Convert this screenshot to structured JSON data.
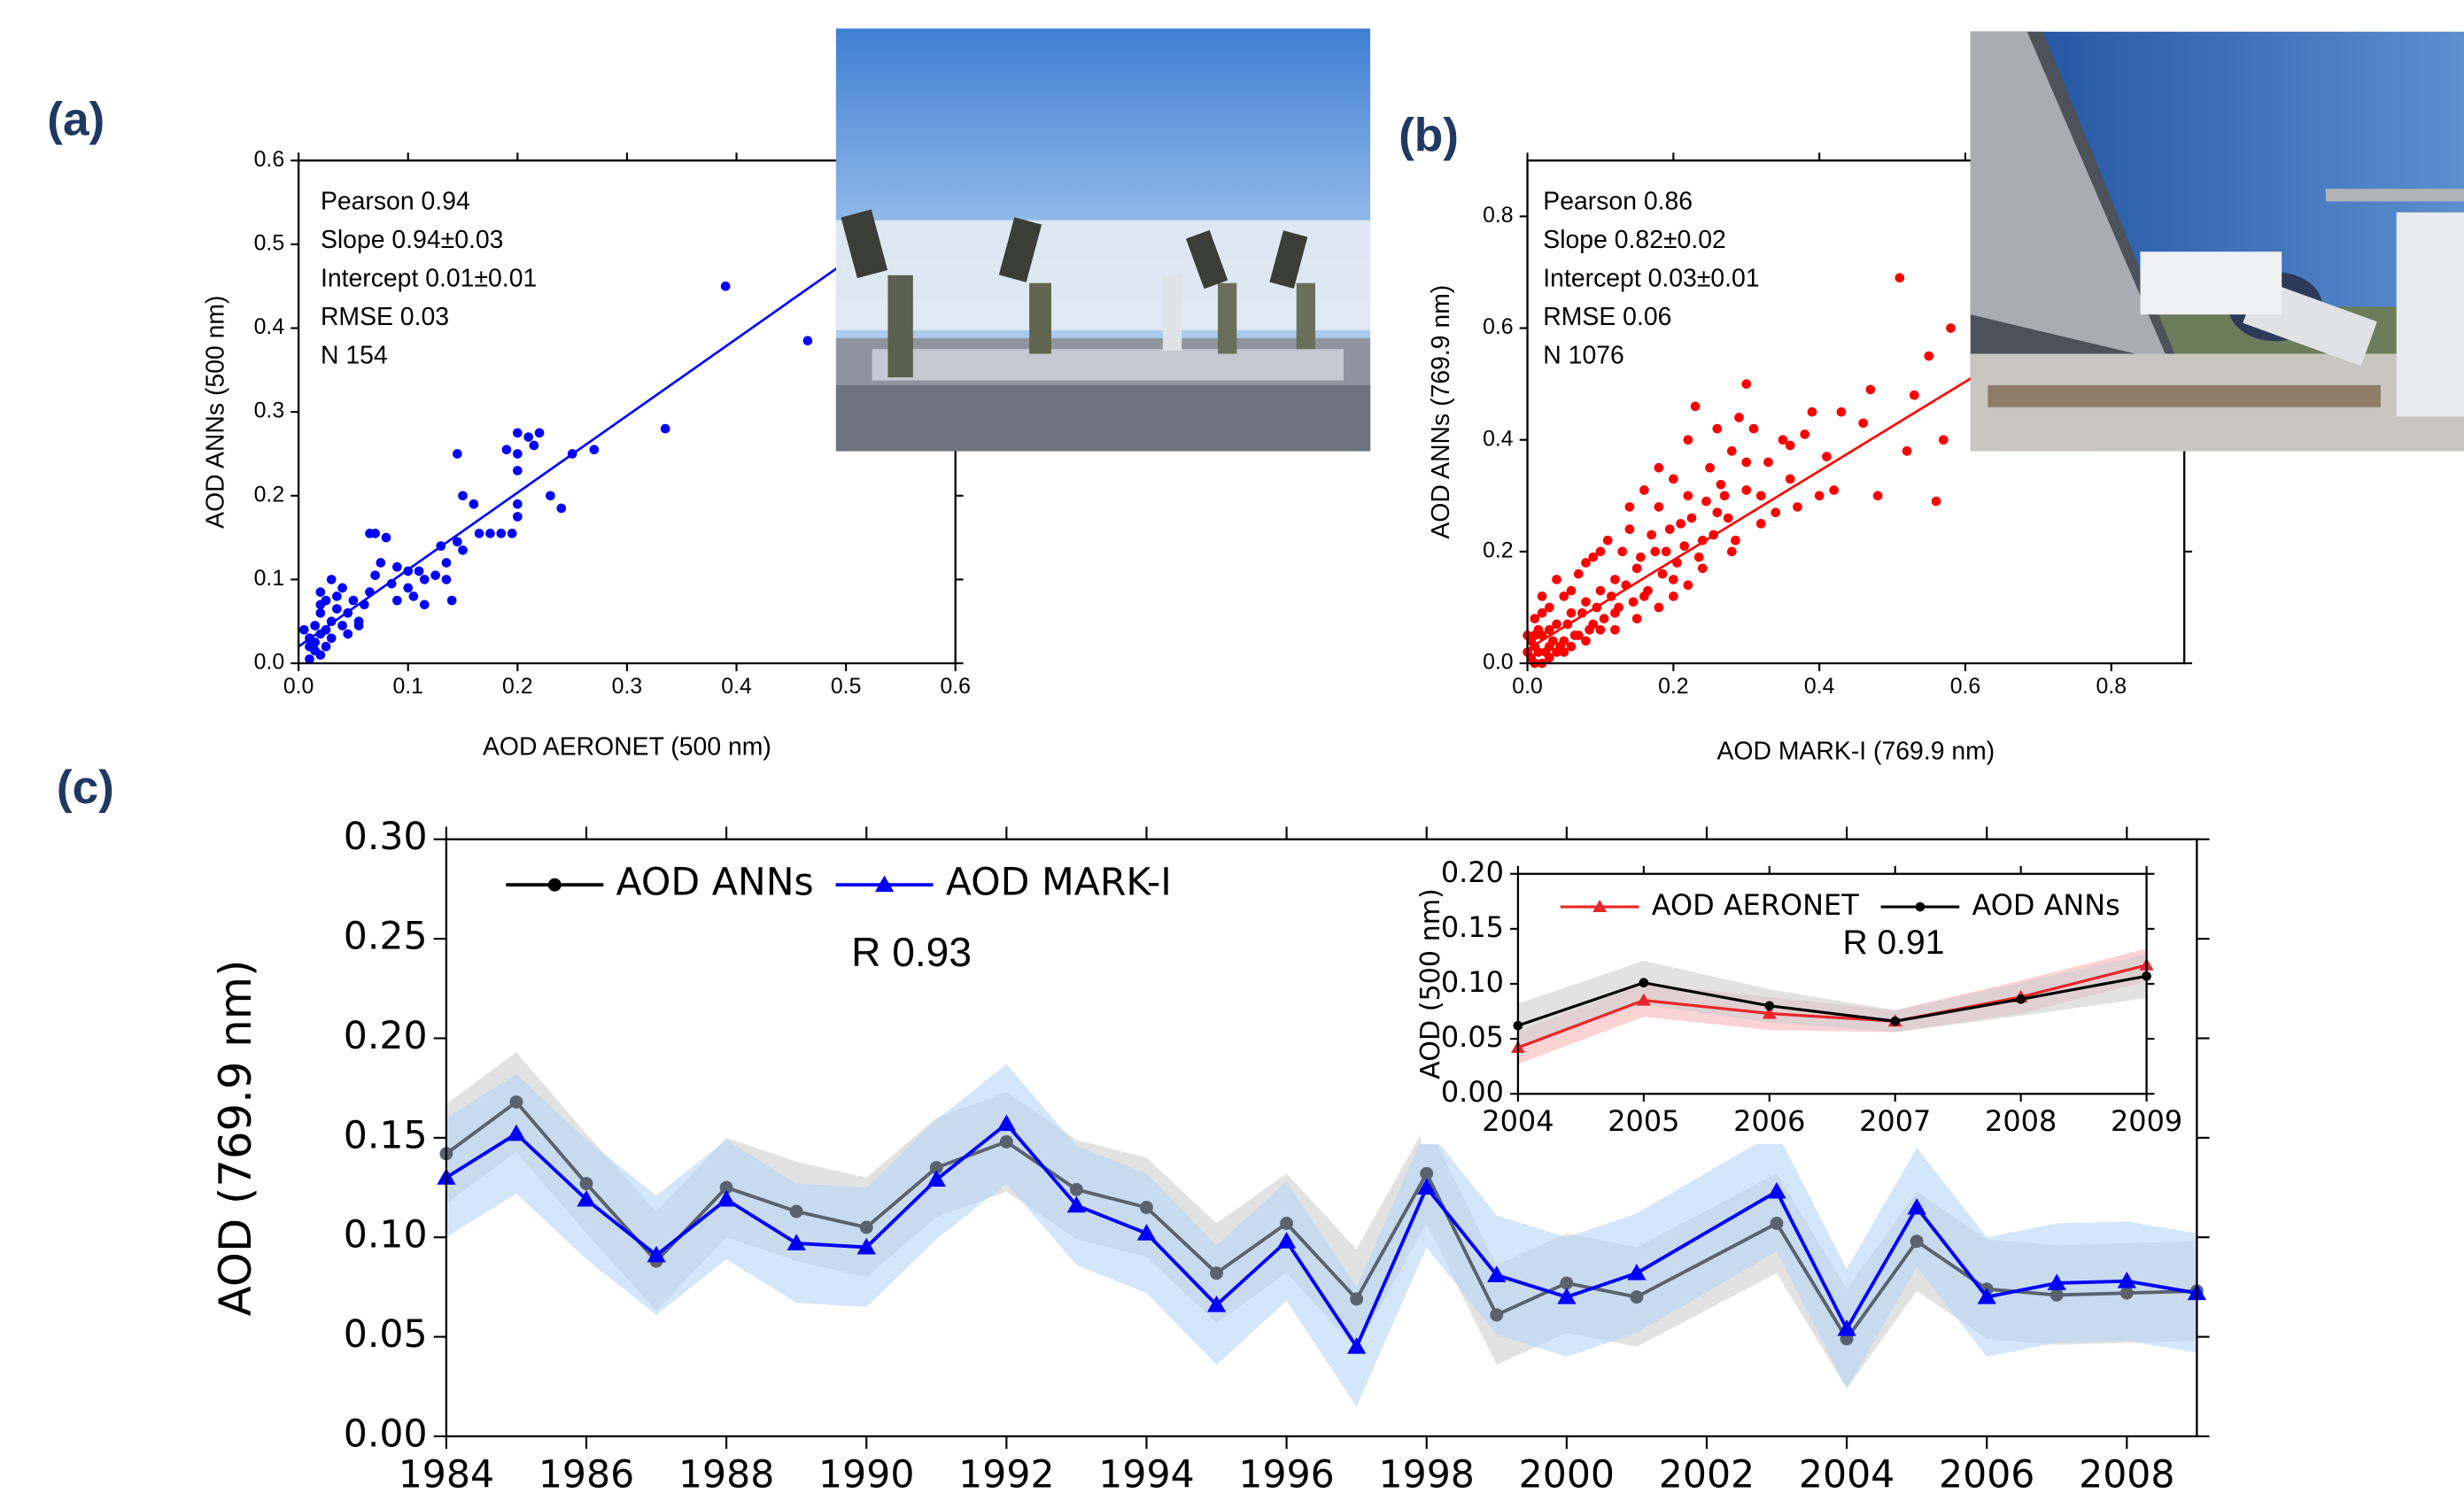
{
  "chart_data": [
    {
      "type": "scatter",
      "panel_label": "(a)",
      "xlabel": "AOD AERONET (500 nm)",
      "ylabel": "AOD ANNs (500 nm)",
      "xlim": [
        0,
        0.6
      ],
      "ylim": [
        0,
        0.6
      ],
      "xticks": [
        {
          "value": 0,
          "label": "0.0"
        },
        0.1,
        0.2,
        0.3,
        0.4,
        0.5,
        0.6
      ],
      "yticks": [
        {
          "value": 0,
          "label": "0.0"
        },
        0.1,
        0.2,
        0.3,
        0.4,
        0.5,
        0.6
      ],
      "annotations": [
        "Pearson 0.94",
        "Slope 0.94±0.03",
        "Intercept 0.01±0.01",
        "RMSE 0.03",
        "N 154"
      ],
      "color": "#0000ff",
      "fit_line": {
        "x": [
          0,
          0.55
        ],
        "y": [
          0.02,
          0.525
        ]
      },
      "points": [
        [
          0.39,
          0.45
        ],
        [
          0.465,
          0.385
        ],
        [
          0.335,
          0.28
        ],
        [
          0.27,
          0.255
        ],
        [
          0.25,
          0.25
        ],
        [
          0.23,
          0.2
        ],
        [
          0.24,
          0.185
        ],
        [
          0.22,
          0.275
        ],
        [
          0.21,
          0.27
        ],
        [
          0.2,
          0.275
        ],
        [
          0.215,
          0.26
        ],
        [
          0.2,
          0.25
        ],
        [
          0.19,
          0.255
        ],
        [
          0.2,
          0.23
        ],
        [
          0.2,
          0.19
        ],
        [
          0.2,
          0.175
        ],
        [
          0.195,
          0.155
        ],
        [
          0.175,
          0.155
        ],
        [
          0.185,
          0.155
        ],
        [
          0.165,
          0.155
        ],
        [
          0.16,
          0.19
        ],
        [
          0.145,
          0.25
        ],
        [
          0.15,
          0.2
        ],
        [
          0.145,
          0.145
        ],
        [
          0.15,
          0.135
        ],
        [
          0.135,
          0.12
        ],
        [
          0.13,
          0.14
        ],
        [
          0.125,
          0.105
        ],
        [
          0.115,
          0.1
        ],
        [
          0.115,
          0.07
        ],
        [
          0.135,
          0.1
        ],
        [
          0.14,
          0.075
        ],
        [
          0.11,
          0.11
        ],
        [
          0.1,
          0.11
        ],
        [
          0.1,
          0.09
        ],
        [
          0.09,
          0.115
        ],
        [
          0.085,
          0.095
        ],
        [
          0.08,
          0.15
        ],
        [
          0.07,
          0.155
        ],
        [
          0.065,
          0.155
        ],
        [
          0.07,
          0.105
        ],
        [
          0.075,
          0.12
        ],
        [
          0.06,
          0.07
        ],
        [
          0.055,
          0.05
        ],
        [
          0.05,
          0.075
        ],
        [
          0.045,
          0.06
        ],
        [
          0.04,
          0.09
        ],
        [
          0.035,
          0.065
        ],
        [
          0.03,
          0.1
        ],
        [
          0.025,
          0.075
        ],
        [
          0.02,
          0.06
        ],
        [
          0.03,
          0.05
        ],
        [
          0.025,
          0.04
        ],
        [
          0.02,
          0.035
        ],
        [
          0.015,
          0.045
        ],
        [
          0.01,
          0.03
        ],
        [
          0.01,
          0.02
        ],
        [
          0.015,
          0.015
        ],
        [
          0.005,
          0.04
        ],
        [
          0.02,
          0.01
        ],
        [
          0.01,
          0.005
        ],
        [
          0.015,
          0.025
        ],
        [
          0.03,
          0.03
        ],
        [
          0.04,
          0.045
        ],
        [
          0.055,
          0.045
        ],
        [
          0.045,
          0.035
        ],
        [
          0.025,
          0.02
        ],
        [
          0.02,
          0.07
        ],
        [
          0.035,
          0.08
        ],
        [
          0.065,
          0.085
        ],
        [
          0.09,
          0.075
        ],
        [
          0.105,
          0.08
        ],
        [
          0.02,
          0.085
        ]
      ]
    },
    {
      "type": "scatter",
      "panel_label": "(b)",
      "xlabel": "AOD MARK-I (769.9 nm)",
      "ylabel": "AOD ANNs (769.9 nm)",
      "xlim": [
        0,
        0.9
      ],
      "ylim": [
        0,
        0.9
      ],
      "xticks": [
        {
          "value": 0,
          "label": "0.0"
        },
        0.2,
        0.4,
        0.6,
        0.8
      ],
      "yticks": [
        {
          "value": 0,
          "label": "0.0"
        },
        0.2,
        0.4,
        0.6,
        0.8
      ],
      "annotations": [
        "Pearson 0.86",
        "Slope 0.82±0.02",
        "Intercept 0.03±0.01",
        "RMSE 0.06",
        "N 1076"
      ],
      "color": "#ff0000",
      "fit_line": {
        "x": [
          0,
          0.62
        ],
        "y": [
          0.025,
          0.52
        ]
      },
      "points": [
        [
          0.51,
          0.69
        ],
        [
          0.47,
          0.49
        ],
        [
          0.55,
          0.55
        ],
        [
          0.58,
          0.6
        ],
        [
          0.56,
          0.29
        ],
        [
          0.53,
          0.48
        ],
        [
          0.57,
          0.4
        ],
        [
          0.48,
          0.3
        ],
        [
          0.52,
          0.38
        ],
        [
          0.46,
          0.43
        ],
        [
          0.43,
          0.45
        ],
        [
          0.41,
          0.37
        ],
        [
          0.39,
          0.45
        ],
        [
          0.42,
          0.31
        ],
        [
          0.4,
          0.3
        ],
        [
          0.38,
          0.41
        ],
        [
          0.36,
          0.33
        ],
        [
          0.35,
          0.4
        ],
        [
          0.37,
          0.28
        ],
        [
          0.33,
          0.36
        ],
        [
          0.31,
          0.42
        ],
        [
          0.3,
          0.31
        ],
        [
          0.32,
          0.25
        ],
        [
          0.28,
          0.38
        ],
        [
          0.27,
          0.3
        ],
        [
          0.29,
          0.44
        ],
        [
          0.26,
          0.27
        ],
        [
          0.25,
          0.35
        ],
        [
          0.24,
          0.22
        ],
        [
          0.23,
          0.46
        ],
        [
          0.22,
          0.3
        ],
        [
          0.21,
          0.25
        ],
        [
          0.2,
          0.33
        ],
        [
          0.19,
          0.2
        ],
        [
          0.18,
          0.28
        ],
        [
          0.17,
          0.23
        ],
        [
          0.16,
          0.31
        ],
        [
          0.15,
          0.17
        ],
        [
          0.14,
          0.24
        ],
        [
          0.13,
          0.2
        ],
        [
          0.12,
          0.15
        ],
        [
          0.11,
          0.22
        ],
        [
          0.1,
          0.13
        ],
        [
          0.09,
          0.19
        ],
        [
          0.08,
          0.11
        ],
        [
          0.07,
          0.16
        ],
        [
          0.06,
          0.09
        ],
        [
          0.05,
          0.12
        ],
        [
          0.04,
          0.07
        ],
        [
          0.03,
          0.1
        ],
        [
          0.02,
          0.05
        ],
        [
          0.01,
          0.03
        ],
        [
          0.005,
          0.01
        ],
        [
          0.015,
          0.06
        ],
        [
          0.025,
          0.02
        ],
        [
          0.035,
          0.04
        ],
        [
          0.045,
          0.03
        ],
        [
          0.055,
          0.07
        ],
        [
          0.065,
          0.05
        ],
        [
          0.075,
          0.09
        ],
        [
          0.085,
          0.06
        ],
        [
          0.095,
          0.1
        ],
        [
          0.105,
          0.08
        ],
        [
          0.115,
          0.12
        ],
        [
          0.125,
          0.1
        ],
        [
          0.135,
          0.14
        ],
        [
          0.145,
          0.11
        ],
        [
          0.155,
          0.19
        ],
        [
          0.165,
          0.13
        ],
        [
          0.175,
          0.2
        ],
        [
          0.185,
          0.16
        ],
        [
          0.195,
          0.24
        ],
        [
          0.205,
          0.18
        ],
        [
          0.215,
          0.21
        ],
        [
          0.225,
          0.26
        ],
        [
          0.235,
          0.19
        ],
        [
          0.245,
          0.29
        ],
        [
          0.255,
          0.23
        ],
        [
          0.265,
          0.32
        ],
        [
          0.275,
          0.26
        ],
        [
          0.285,
          0.22
        ],
        [
          0.3,
          0.36
        ],
        [
          0.32,
          0.3
        ],
        [
          0.34,
          0.27
        ],
        [
          0.36,
          0.39
        ],
        [
          0.01,
          0.08
        ],
        [
          0.02,
          0.12
        ],
        [
          0.03,
          0.06
        ],
        [
          0.04,
          0.15
        ],
        [
          0.05,
          0.04
        ],
        [
          0.06,
          0.13
        ],
        [
          0.07,
          0.05
        ],
        [
          0.08,
          0.18
        ],
        [
          0.09,
          0.07
        ],
        [
          0.1,
          0.2
        ],
        [
          0.12,
          0.09
        ],
        [
          0.14,
          0.28
        ],
        [
          0.16,
          0.12
        ],
        [
          0.18,
          0.35
        ],
        [
          0.2,
          0.15
        ],
        [
          0.22,
          0.4
        ],
        [
          0.24,
          0.17
        ],
        [
          0.26,
          0.42
        ],
        [
          0.28,
          0.2
        ],
        [
          0.3,
          0.5
        ],
        [
          0.005,
          0.04
        ],
        [
          0.01,
          0.0
        ],
        [
          0.015,
          0.02
        ],
        [
          0.02,
          0.0
        ],
        [
          0.03,
          0.01
        ],
        [
          0.04,
          0.02
        ],
        [
          0.05,
          0.02
        ],
        [
          0.06,
          0.03
        ],
        [
          0.08,
          0.04
        ],
        [
          0.1,
          0.06
        ],
        [
          0.12,
          0.06
        ],
        [
          0.15,
          0.08
        ],
        [
          0.18,
          0.1
        ],
        [
          0.2,
          0.12
        ],
        [
          0.22,
          0.14
        ],
        [
          0.0,
          0.05
        ],
        [
          0.0,
          0.02
        ],
        [
          0.01,
          0.05
        ],
        [
          0.02,
          0.09
        ],
        [
          0.03,
          0.03
        ]
      ]
    },
    {
      "type": "line",
      "panel_label": "(c)",
      "ylabel": "AOD (769.9 nm)",
      "annotation": "R 0.93",
      "xlim": [
        1984,
        2009
      ],
      "ylim": [
        0,
        0.3
      ],
      "xticks": [
        1984,
        1986,
        1988,
        1990,
        1992,
        1994,
        1996,
        1998,
        2000,
        2002,
        2004,
        2006,
        2008
      ],
      "yticks": [
        {
          "value": 0,
          "label": "0.00"
        },
        {
          "value": 0.05,
          "label": "0.05"
        },
        {
          "value": 0.1,
          "label": "0.10"
        },
        {
          "value": 0.15,
          "label": "0.15"
        },
        {
          "value": 0.2,
          "label": "0.20"
        },
        {
          "value": 0.25,
          "label": "0.25"
        },
        {
          "value": 0.3,
          "label": "0.30"
        }
      ],
      "x": [
        1984,
        1985,
        1986,
        1987,
        1988,
        1989,
        1990,
        1991,
        1992,
        1993,
        1994,
        1995,
        1996,
        1997,
        1998,
        1999,
        2000,
        2001,
        2003,
        2004,
        2005,
        2006,
        2007,
        2008,
        2009
      ],
      "series": [
        {
          "name": "AOD ANNs",
          "color": "#59636f",
          "legend_color": "#000000",
          "marker": "circle",
          "band_color": "#cfcfcf",
          "values": [
            0.142,
            0.168,
            0.127,
            0.088,
            0.125,
            0.113,
            0.105,
            0.135,
            0.148,
            0.124,
            0.115,
            0.082,
            0.107,
            0.069,
            0.132,
            0.061,
            0.077,
            0.07,
            0.107,
            0.049,
            0.098,
            0.074,
            0.071,
            0.072,
            0.073
          ],
          "upper": [
            0.167,
            0.193,
            0.152,
            0.113,
            0.15,
            0.138,
            0.13,
            0.16,
            0.173,
            0.149,
            0.14,
            0.107,
            0.132,
            0.094,
            0.157,
            0.086,
            0.102,
            0.095,
            0.132,
            0.074,
            0.123,
            0.099,
            0.096,
            0.097,
            0.098
          ],
          "lower": [
            0.117,
            0.143,
            0.102,
            0.063,
            0.1,
            0.088,
            0.08,
            0.11,
            0.123,
            0.099,
            0.09,
            0.057,
            0.082,
            0.044,
            0.107,
            0.036,
            0.052,
            0.045,
            0.082,
            0.024,
            0.073,
            0.049,
            0.046,
            0.047,
            0.048
          ]
        },
        {
          "name": "AOD MARK-I",
          "color": "#0000ff",
          "legend_color": "#0000ff",
          "marker": "triangle",
          "band_color": "#b7d6f6",
          "values": [
            0.13,
            0.152,
            0.119,
            0.091,
            0.119,
            0.097,
            0.095,
            0.129,
            0.157,
            0.116,
            0.102,
            0.066,
            0.098,
            0.045,
            0.125,
            0.081,
            0.07,
            0.082,
            0.123,
            0.054,
            0.115,
            0.07,
            0.077,
            0.078,
            0.072
          ],
          "upper": [
            0.16,
            0.182,
            0.149,
            0.121,
            0.149,
            0.127,
            0.125,
            0.159,
            0.187,
            0.146,
            0.132,
            0.096,
            0.128,
            0.075,
            0.155,
            0.111,
            0.1,
            0.112,
            0.153,
            0.084,
            0.145,
            0.1,
            0.107,
            0.108,
            0.102
          ],
          "lower": [
            0.1,
            0.122,
            0.089,
            0.061,
            0.089,
            0.067,
            0.065,
            0.099,
            0.127,
            0.086,
            0.072,
            0.036,
            0.068,
            0.015,
            0.095,
            0.051,
            0.04,
            0.052,
            0.093,
            0.024,
            0.085,
            0.04,
            0.047,
            0.048,
            0.042
          ]
        }
      ]
    },
    {
      "type": "line",
      "ylabel": "AOD (500 nm)",
      "annotation": "R 0.91",
      "xlim": [
        2004,
        2009
      ],
      "ylim": [
        0,
        0.2
      ],
      "xticks": [
        2004,
        2005,
        2006,
        2007,
        2008,
        2009
      ],
      "yticks": [
        {
          "value": 0,
          "label": "0.00"
        },
        {
          "value": 0.05,
          "label": "0.05"
        },
        {
          "value": 0.1,
          "label": "0.10"
        },
        {
          "value": 0.15,
          "label": "0.15"
        },
        {
          "value": 0.2,
          "label": "0.20"
        }
      ],
      "x": [
        2004,
        2005,
        2006,
        2007,
        2008,
        2009
      ],
      "series": [
        {
          "name": "AOD AERONET",
          "color": "#e8262a",
          "legend_color": "#e8262a",
          "marker": "triangle",
          "band_color": "#f7b6b8",
          "values": [
            0.042,
            0.085,
            0.073,
            0.066,
            0.088,
            0.117
          ],
          "upper": [
            0.057,
            0.1,
            0.088,
            0.076,
            0.103,
            0.132
          ],
          "lower": [
            0.027,
            0.07,
            0.058,
            0.056,
            0.073,
            0.102
          ]
        },
        {
          "name": "AOD ANNs",
          "color": "#000000",
          "legend_color": "#000000",
          "marker": "circle",
          "band_color": "#cfcfcf",
          "values": [
            0.062,
            0.101,
            0.08,
            0.066,
            0.086,
            0.107
          ],
          "upper": [
            0.082,
            0.121,
            0.095,
            0.076,
            0.101,
            0.127
          ],
          "lower": [
            0.042,
            0.081,
            0.065,
            0.056,
            0.071,
            0.087
          ]
        }
      ]
    }
  ]
}
